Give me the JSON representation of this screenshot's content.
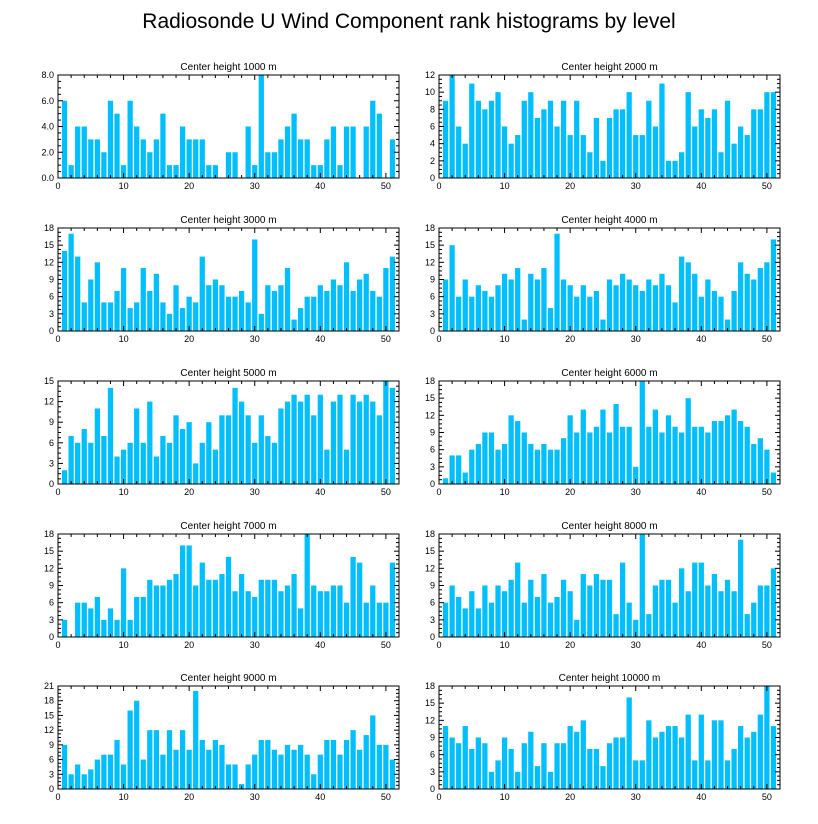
{
  "title": "Radiosonde U Wind Component rank histograms by level",
  "colors": {
    "bar": "#00bfff",
    "axis": "#000000",
    "background": "#ffffff"
  },
  "chart_data": [
    {
      "type": "bar",
      "title": "Center height 1000 m",
      "ylim": [
        0,
        8
      ],
      "yticks": [
        0,
        2,
        4,
        6,
        8
      ],
      "ytick_labels": [
        "0.0",
        "2.0",
        "4.0",
        "6.0",
        "8.0"
      ],
      "xlim": [
        0,
        52
      ],
      "xticks": [
        0,
        10,
        20,
        30,
        40,
        50
      ],
      "x_start": 1,
      "values": [
        6,
        1,
        4,
        4,
        3,
        3,
        2,
        6,
        5,
        1,
        6,
        4,
        3,
        2,
        3,
        5,
        1,
        1,
        4,
        3,
        3,
        3,
        1,
        1,
        0,
        2,
        2,
        0,
        4,
        1,
        8,
        2,
        2,
        3,
        4,
        5,
        3,
        3,
        1,
        1,
        3,
        4,
        1,
        4,
        4,
        0,
        4,
        6,
        5,
        0,
        3
      ]
    },
    {
      "type": "bar",
      "title": "Center height 2000 m",
      "ylim": [
        0,
        12
      ],
      "yticks": [
        0,
        2,
        4,
        6,
        8,
        10,
        12
      ],
      "ytick_labels": [
        "0",
        "2",
        "4",
        "6",
        "8",
        "10",
        "12"
      ],
      "xlim": [
        0,
        52
      ],
      "xticks": [
        0,
        10,
        20,
        30,
        40,
        50
      ],
      "x_start": 1,
      "values": [
        9,
        12,
        6,
        4,
        11,
        9,
        8,
        9,
        10,
        6,
        4,
        5,
        9,
        10,
        7,
        8,
        9,
        6,
        9,
        5,
        9,
        5,
        3,
        7,
        2,
        7,
        8,
        8,
        10,
        5,
        5,
        9,
        6,
        11,
        2,
        2,
        3,
        10,
        6,
        8,
        7,
        8,
        3,
        9,
        4,
        6,
        5,
        8,
        8,
        10,
        10
      ]
    },
    {
      "type": "bar",
      "title": "Center height 3000 m",
      "ylim": [
        0,
        18
      ],
      "yticks": [
        0,
        3,
        6,
        9,
        12,
        15,
        18
      ],
      "ytick_labels": [
        "0",
        "3",
        "6",
        "9",
        "12",
        "15",
        "18"
      ],
      "xlim": [
        0,
        52
      ],
      "xticks": [
        0,
        10,
        20,
        30,
        40,
        50
      ],
      "x_start": 1,
      "values": [
        14,
        17,
        13,
        5,
        9,
        12,
        5,
        5,
        7,
        11,
        4,
        5,
        11,
        7,
        10,
        5,
        3,
        8,
        4,
        6,
        5,
        13,
        8,
        9,
        8,
        6,
        6,
        7,
        5,
        16,
        3,
        8,
        7,
        8,
        11,
        2,
        4,
        6,
        6,
        8,
        7,
        9,
        8,
        12,
        7,
        9,
        10,
        7,
        6,
        11,
        13
      ]
    },
    {
      "type": "bar",
      "title": "Center height 4000 m",
      "ylim": [
        0,
        18
      ],
      "yticks": [
        0,
        3,
        6,
        9,
        12,
        15,
        18
      ],
      "ytick_labels": [
        "0",
        "3",
        "6",
        "9",
        "12",
        "15",
        "18"
      ],
      "xlim": [
        0,
        52
      ],
      "xticks": [
        0,
        10,
        20,
        30,
        40,
        50
      ],
      "x_start": 1,
      "values": [
        9,
        15,
        6,
        9,
        6,
        8,
        7,
        6,
        8,
        10,
        9,
        11,
        2,
        10,
        9,
        11,
        4,
        17,
        9,
        8,
        6,
        8,
        6,
        7,
        2,
        9,
        8,
        10,
        9,
        8,
        7,
        9,
        8,
        10,
        8,
        5,
        13,
        12,
        10,
        6,
        9,
        7,
        6,
        2,
        7,
        12,
        10,
        9,
        11,
        12,
        16
      ]
    },
    {
      "type": "bar",
      "title": "Center height 5000 m",
      "ylim": [
        0,
        15
      ],
      "yticks": [
        0,
        3,
        6,
        9,
        12,
        15
      ],
      "ytick_labels": [
        "0",
        "3",
        "6",
        "9",
        "12",
        "15"
      ],
      "xlim": [
        0,
        52
      ],
      "xticks": [
        0,
        10,
        20,
        30,
        40,
        50
      ],
      "x_start": 1,
      "values": [
        2,
        7,
        6,
        8,
        6,
        11,
        7,
        14,
        4,
        5,
        6,
        11,
        6,
        12,
        4,
        7,
        6,
        10,
        8,
        9,
        3,
        6,
        9,
        5,
        10,
        10,
        14,
        12,
        10,
        6,
        10,
        7,
        6,
        11,
        12,
        13,
        12,
        13,
        10,
        13,
        5,
        12,
        13,
        5,
        13,
        12,
        13,
        12,
        10,
        15,
        14
      ]
    },
    {
      "type": "bar",
      "title": "Center height 6000 m",
      "ylim": [
        0,
        18
      ],
      "yticks": [
        0,
        3,
        6,
        9,
        12,
        15,
        18
      ],
      "ytick_labels": [
        "0",
        "3",
        "6",
        "9",
        "12",
        "15",
        "18"
      ],
      "xlim": [
        0,
        52
      ],
      "xticks": [
        0,
        10,
        20,
        30,
        40,
        50
      ],
      "x_start": 1,
      "values": [
        1,
        5,
        5,
        2,
        6,
        7,
        9,
        9,
        6,
        7,
        12,
        11,
        9,
        7,
        6,
        7,
        6,
        6,
        8,
        12,
        9,
        13,
        9,
        10,
        13,
        9,
        14,
        10,
        10,
        3,
        18,
        10,
        13,
        9,
        12,
        10,
        9,
        15,
        10,
        10,
        9,
        11,
        11,
        12,
        13,
        11,
        10,
        7,
        8,
        6,
        2
      ]
    },
    {
      "type": "bar",
      "title": "Center height 7000 m",
      "ylim": [
        0,
        18
      ],
      "yticks": [
        0,
        3,
        6,
        9,
        12,
        15,
        18
      ],
      "ytick_labels": [
        "0",
        "3",
        "6",
        "9",
        "12",
        "15",
        "18"
      ],
      "xlim": [
        0,
        52
      ],
      "xticks": [
        0,
        10,
        20,
        30,
        40,
        50
      ],
      "x_start": 1,
      "values": [
        3,
        0,
        6,
        6,
        5,
        7,
        3,
        5,
        3,
        12,
        3,
        7,
        7,
        10,
        9,
        9,
        10,
        11,
        16,
        16,
        9,
        13,
        10,
        10,
        11,
        14,
        8,
        11,
        8,
        7,
        10,
        10,
        10,
        8,
        9,
        11,
        5,
        18,
        9,
        8,
        8,
        9,
        9,
        6,
        14,
        13,
        6,
        9,
        6,
        6,
        13
      ]
    },
    {
      "type": "bar",
      "title": "Center height 8000 m",
      "ylim": [
        0,
        18
      ],
      "yticks": [
        0,
        3,
        6,
        9,
        12,
        15,
        18
      ],
      "ytick_labels": [
        "0",
        "3",
        "6",
        "9",
        "12",
        "15",
        "18"
      ],
      "xlim": [
        0,
        52
      ],
      "xticks": [
        0,
        10,
        20,
        30,
        40,
        50
      ],
      "x_start": 1,
      "values": [
        6,
        9,
        7,
        5,
        8,
        5,
        9,
        6,
        9,
        8,
        10,
        13,
        6,
        10,
        7,
        11,
        6,
        7,
        10,
        8,
        3,
        11,
        9,
        11,
        10,
        10,
        4,
        13,
        6,
        3,
        18,
        4,
        9,
        10,
        10,
        6,
        12,
        8,
        13,
        13,
        9,
        11,
        8,
        10,
        8,
        17,
        4,
        6,
        9,
        9,
        12
      ]
    },
    {
      "type": "bar",
      "title": "Center height 9000 m",
      "ylim": [
        0,
        21
      ],
      "yticks": [
        0,
        3,
        6,
        9,
        12,
        15,
        18,
        21
      ],
      "ytick_labels": [
        "0",
        "3",
        "6",
        "9",
        "12",
        "15",
        "18",
        "21"
      ],
      "xlim": [
        0,
        52
      ],
      "xticks": [
        0,
        10,
        20,
        30,
        40,
        50
      ],
      "x_start": 1,
      "values": [
        9,
        3,
        5,
        3,
        4,
        6,
        7,
        7,
        10,
        5,
        16,
        18,
        6,
        12,
        12,
        7,
        12,
        8,
        12,
        8,
        20,
        10,
        8,
        10,
        9,
        5,
        5,
        1,
        5,
        7,
        10,
        10,
        8,
        7,
        9,
        8,
        9,
        7,
        3,
        7,
        10,
        10,
        7,
        10,
        12,
        8,
        11,
        15,
        9,
        9,
        6
      ]
    },
    {
      "type": "bar",
      "title": "Center height 10000 m",
      "ylim": [
        0,
        18
      ],
      "yticks": [
        0,
        3,
        6,
        9,
        12,
        15,
        18
      ],
      "ytick_labels": [
        "0",
        "3",
        "6",
        "9",
        "12",
        "15",
        "18"
      ],
      "xlim": [
        0,
        52
      ],
      "xticks": [
        0,
        10,
        20,
        30,
        40,
        50
      ],
      "x_start": 1,
      "values": [
        11,
        9,
        8,
        11,
        7,
        9,
        8,
        3,
        5,
        9,
        7,
        3,
        8,
        10,
        4,
        8,
        3,
        8,
        8,
        11,
        10,
        12,
        7,
        7,
        4,
        8,
        9,
        9,
        16,
        5,
        5,
        12,
        9,
        10,
        11,
        11,
        9,
        13,
        5,
        13,
        5,
        12,
        12,
        5,
        7,
        11,
        9,
        10,
        13,
        18,
        11
      ]
    }
  ]
}
